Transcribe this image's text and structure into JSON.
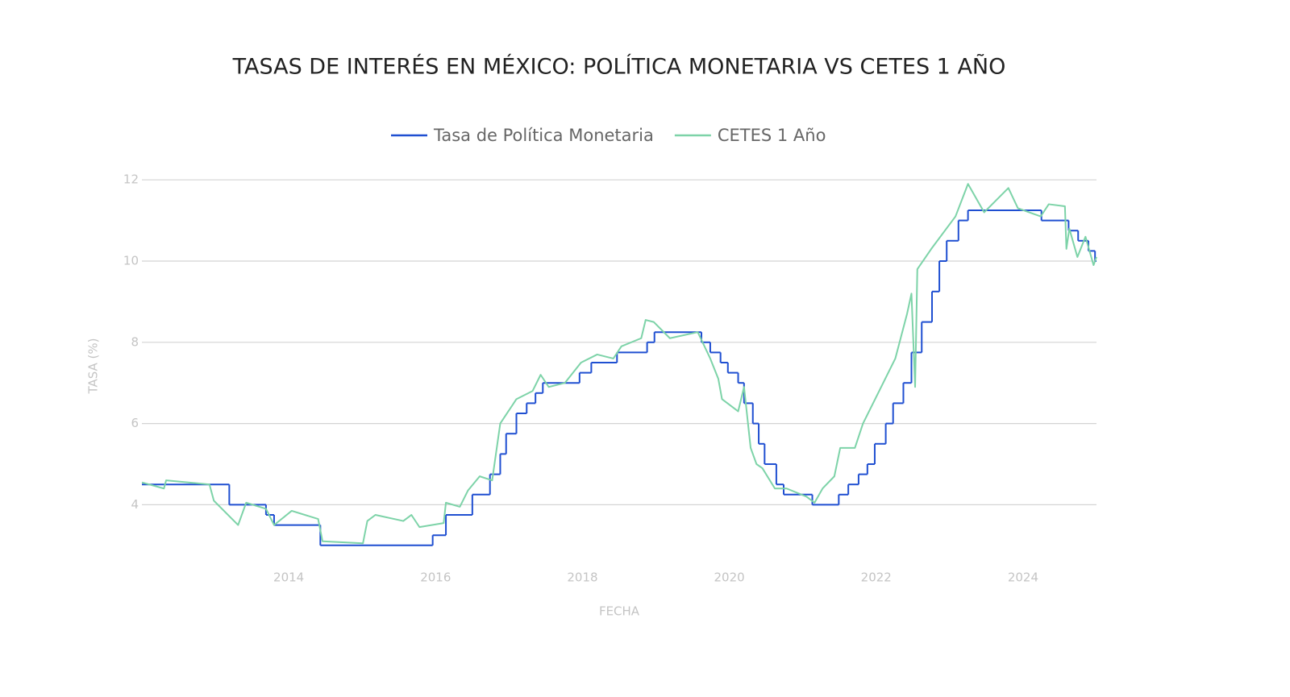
{
  "chart_data": {
    "type": "line",
    "title": "TASAS DE INTERÉS EN MÉXICO: POLÍTICA MONETARIA VS CETES 1 AÑO",
    "x_label": "FECHA",
    "y_label": "TASA (%)",
    "xlim": [
      2012,
      2025
    ],
    "xticks": [
      2014,
      2016,
      2018,
      2020,
      2022,
      2024
    ],
    "ylim": [
      2.5,
      12.5
    ],
    "yticks": [
      4,
      6,
      8,
      10,
      12
    ],
    "grid": true,
    "legend": "top",
    "series": [
      {
        "name": "Tasa de Política Monetaria",
        "color": "#1f4fd1",
        "step": true,
        "x": [
          2012.0,
          2013.19,
          2013.69,
          2013.8,
          2014.43,
          2015.96,
          2016.14,
          2016.5,
          2016.74,
          2016.88,
          2016.96,
          2017.1,
          2017.24,
          2017.36,
          2017.46,
          2017.96,
          2018.12,
          2018.47,
          2018.88,
          2018.98,
          2019.62,
          2019.74,
          2019.88,
          2019.98,
          2020.12,
          2020.2,
          2020.32,
          2020.4,
          2020.48,
          2020.64,
          2020.74,
          2021.13,
          2021.49,
          2021.62,
          2021.76,
          2021.88,
          2021.98,
          2022.13,
          2022.23,
          2022.37,
          2022.48,
          2022.62,
          2022.76,
          2022.86,
          2022.96,
          2023.12,
          2023.25,
          2024.25,
          2024.62,
          2024.75,
          2024.89,
          2024.98
        ],
        "values": [
          4.5,
          4.0,
          3.75,
          3.5,
          3.0,
          3.25,
          3.75,
          4.25,
          4.75,
          5.25,
          5.75,
          6.25,
          6.5,
          6.75,
          7.0,
          7.25,
          7.5,
          7.75,
          8.0,
          8.25,
          8.0,
          7.75,
          7.5,
          7.25,
          7.0,
          6.5,
          6.0,
          5.5,
          5.0,
          4.5,
          4.25,
          4.0,
          4.25,
          4.5,
          4.75,
          5.0,
          5.5,
          6.0,
          6.5,
          7.0,
          7.75,
          8.5,
          9.25,
          10.0,
          10.5,
          11.0,
          11.25,
          11.0,
          10.75,
          10.5,
          10.25,
          10.0
        ]
      },
      {
        "name": "CETES 1 Año",
        "color": "#7dd3a8",
        "x": [
          2012.0,
          2012.3,
          2012.33,
          2012.92,
          2012.98,
          2013.31,
          2013.42,
          2013.69,
          2013.8,
          2014.04,
          2014.4,
          2014.46,
          2015.01,
          2015.07,
          2015.18,
          2015.56,
          2015.67,
          2015.78,
          2016.11,
          2016.14,
          2016.33,
          2016.44,
          2016.6,
          2016.77,
          2016.88,
          2016.99,
          2017.1,
          2017.32,
          2017.43,
          2017.54,
          2017.76,
          2017.98,
          2018.2,
          2018.42,
          2018.53,
          2018.8,
          2018.86,
          2018.97,
          2019.19,
          2019.57,
          2019.74,
          2019.85,
          2019.9,
          2020.12,
          2020.2,
          2020.29,
          2020.37,
          2020.45,
          2020.62,
          2020.78,
          2021.05,
          2021.16,
          2021.27,
          2021.43,
          2021.51,
          2021.71,
          2021.82,
          2022.04,
          2022.26,
          2022.42,
          2022.48,
          2022.53,
          2022.56,
          2022.75,
          2023.08,
          2023.25,
          2023.47,
          2023.8,
          2023.93,
          2024.24,
          2024.35,
          2024.57,
          2024.59,
          2024.63,
          2024.74,
          2024.85,
          2024.96,
          2025.0
        ],
        "values": [
          4.55,
          4.4,
          4.6,
          4.5,
          4.1,
          3.5,
          4.05,
          3.9,
          3.5,
          3.85,
          3.65,
          3.1,
          3.05,
          3.6,
          3.75,
          3.6,
          3.75,
          3.45,
          3.55,
          4.05,
          3.95,
          4.35,
          4.7,
          4.6,
          6.0,
          6.3,
          6.6,
          6.8,
          7.2,
          6.9,
          7.0,
          7.5,
          7.7,
          7.6,
          7.9,
          8.1,
          8.55,
          8.5,
          8.1,
          8.25,
          7.6,
          7.1,
          6.6,
          6.3,
          6.9,
          5.4,
          5.0,
          4.9,
          4.4,
          4.4,
          4.2,
          4.05,
          4.4,
          4.7,
          5.4,
          5.4,
          6.0,
          6.8,
          7.6,
          8.7,
          9.2,
          6.9,
          9.8,
          10.3,
          11.1,
          11.9,
          11.2,
          11.8,
          11.3,
          11.1,
          11.4,
          11.35,
          10.3,
          10.8,
          10.1,
          10.6,
          9.9,
          10.1
        ]
      }
    ]
  }
}
